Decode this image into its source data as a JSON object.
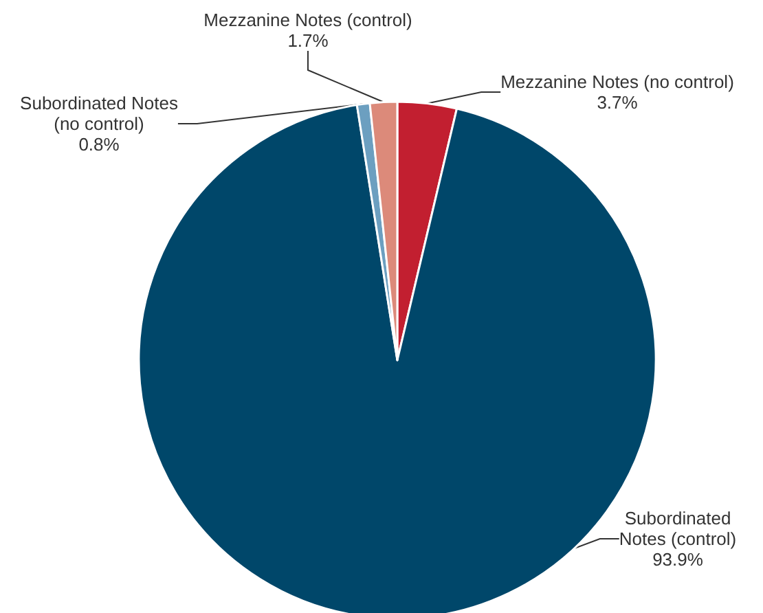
{
  "chart_data": {
    "type": "pie",
    "categories": [
      "Mezzanine Notes (no control)",
      "Subordinated\nNotes (control)",
      "Subordinated Notes\n(no control)",
      "Mezzanine Notes (control)"
    ],
    "values": [
      3.7,
      93.9,
      0.8,
      1.7
    ],
    "colors": [
      "#c21f30",
      "#00476a",
      "#6c9fc0",
      "#dc8a7a"
    ],
    "value_labels": [
      "3.7%",
      "93.9%",
      "0.8%",
      "1.7%"
    ],
    "legend": false
  }
}
